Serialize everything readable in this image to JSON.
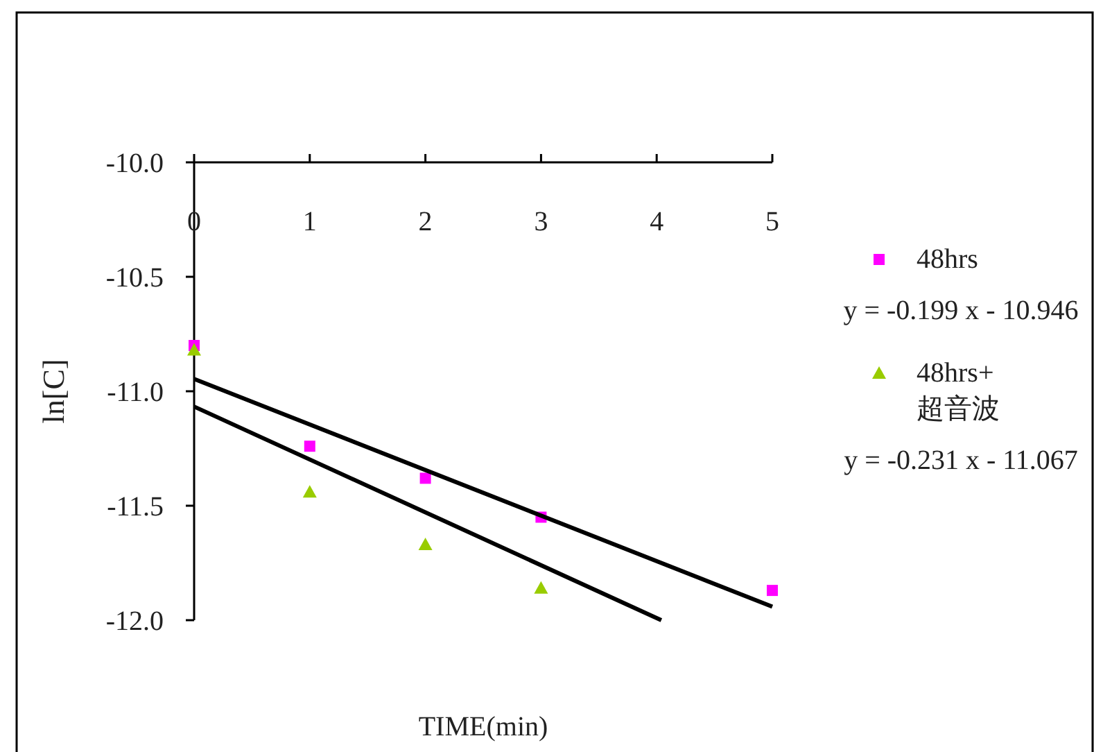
{
  "chart_data": {
    "type": "scatter",
    "xlabel": "TIME(min)",
    "ylabel": "ln[C]",
    "xlim": [
      0,
      5
    ],
    "xticks": [
      0,
      1,
      2,
      3,
      4,
      5
    ],
    "ylim": [
      -12,
      -10
    ],
    "yticks": [
      {
        "value": -10,
        "label": "-10.0"
      },
      {
        "value": -10.5,
        "label": "-10.5"
      },
      {
        "value": -11,
        "label": "-11.0"
      },
      {
        "value": -11.5,
        "label": "-11.5"
      },
      {
        "value": -12,
        "label": "-12.0"
      }
    ],
    "grid": false,
    "legend": "right",
    "series": [
      {
        "name": "48hrs",
        "marker": "square",
        "color": "#ff00ff",
        "x": [
          0,
          1,
          2,
          3,
          5
        ],
        "values": [
          -10.8,
          -11.24,
          -11.38,
          -11.55,
          -11.87
        ]
      },
      {
        "name": "48hrs+\n超音波",
        "marker": "triangle",
        "color": "#99cc00",
        "x": [
          0,
          1,
          2,
          3
        ],
        "values": [
          -10.82,
          -11.44,
          -11.67,
          -11.86
        ]
      },
      {
        "type": "line",
        "color": "#000000",
        "x": [
          0,
          5
        ],
        "values": [
          -10.946,
          -11.941
        ]
      },
      {
        "type": "line",
        "color": "#000000",
        "x": [
          0,
          4.04
        ],
        "values": [
          -11.067,
          -12.0
        ]
      }
    ],
    "annotations": [
      "y = -0.199 x - 10.946",
      "y = -0.231 x - 11.067"
    ]
  }
}
